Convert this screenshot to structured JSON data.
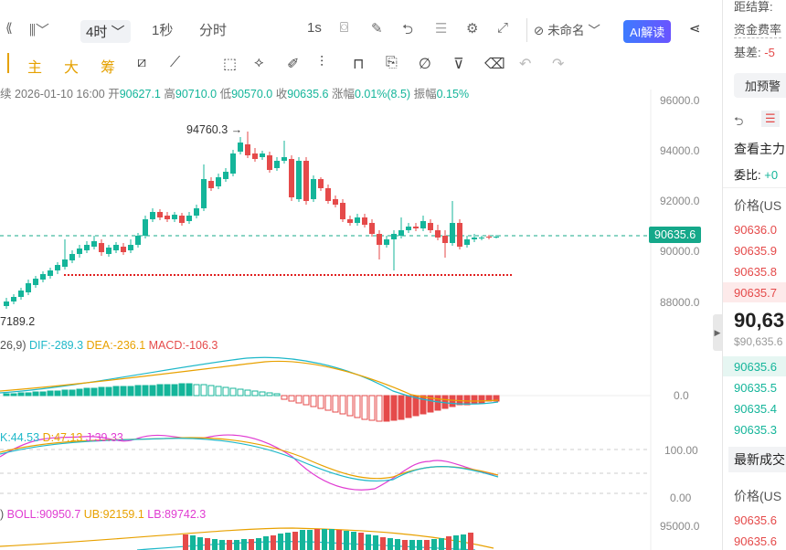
{
  "toolbar": {
    "interval": "4时",
    "one_sec": "1秒",
    "time_share": "分时",
    "res_1s": "1s",
    "layout_name": "未命名",
    "ai_label": "AI解读"
  },
  "indicator_toggles": {
    "main": "主",
    "large": "大",
    "chips": "筹"
  },
  "ohlc_bar": {
    "prefix": "续",
    "datetime": "2026-01-10 16:00",
    "open_label": "开",
    "open": "90627.1",
    "high_label": "高",
    "high": "90710.0",
    "low_label": "低",
    "low": "90570.0",
    "close_label": "收",
    "close": "90635.6",
    "change_label": "涨幅",
    "change": "0.01%(8.5)",
    "amp_label": "振幅",
    "amp": "0.15%"
  },
  "price_axis": {
    "ticks": [
      "96000.0",
      "94000.0",
      "92000.0",
      "90000.0",
      "88000.0"
    ],
    "current": "90635.6",
    "high_marker": "94760.3",
    "low_marker": "7189.2"
  },
  "macd": {
    "params": "26,9)",
    "dif": "DIF:-289.3",
    "dea": "DEA:-236.1",
    "macd": "MACD:-106.3",
    "zero": "0.0"
  },
  "kdj": {
    "k": "K:44.53",
    "d": "D:47.13",
    "j": "J:39.33",
    "top": "100.00",
    "bottom": "0.00"
  },
  "boll": {
    "boll": "BOLL:90950.7",
    "ub": "UB:92159.1",
    "lb": "LB:89742.3",
    "tick": "95000.0"
  },
  "right_panel": {
    "settle_dist": "距结算:",
    "funding": "资金费率",
    "basis": "基差:",
    "basis_val": "-5",
    "alert_btn": "加预警",
    "view_main": "查看主力",
    "commit_ratio": "委比:",
    "commit_val": "+0",
    "price_header": "价格(US",
    "asks": [
      "90636.0",
      "90635.9",
      "90635.8",
      "90635.7"
    ],
    "last_big": "90,63",
    "last_usd": "$90,635.6",
    "bids": [
      "90635.6",
      "90635.5",
      "90635.4",
      "90635.3"
    ],
    "latest_trades": "最新成交",
    "price_header2": "价格(US",
    "trades": [
      "90635.6",
      "90635.6"
    ]
  },
  "colors": {
    "up": "#14b59a",
    "down": "#e54a4a",
    "accent": "#3d7bff"
  }
}
